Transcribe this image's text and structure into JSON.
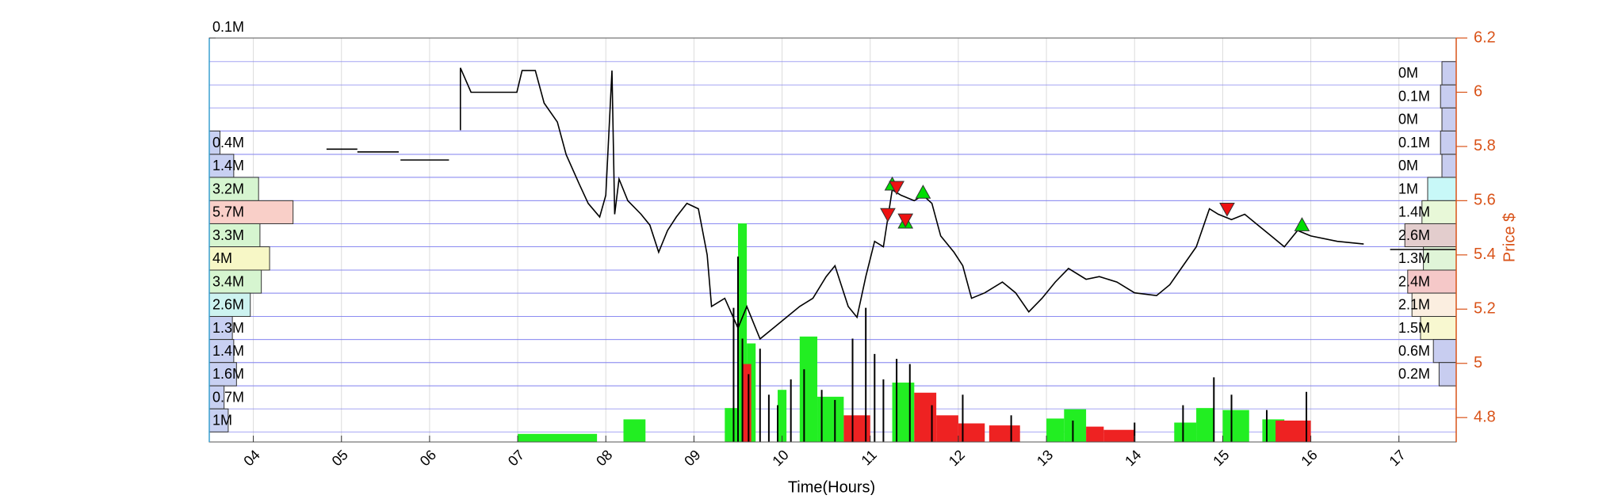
{
  "chart_data": {
    "type": "price-volume",
    "xlabel": "Time(Hours)",
    "ylabel": "Price $",
    "xlim": [
      3.5,
      17.65
    ],
    "xticks": [
      {
        "value": 4,
        "label": "04"
      },
      {
        "value": 5,
        "label": "05"
      },
      {
        "value": 6,
        "label": "06"
      },
      {
        "value": 7,
        "label": "07"
      },
      {
        "value": 8,
        "label": "08"
      },
      {
        "value": 9,
        "label": "09"
      },
      10,
      11,
      12,
      13,
      14,
      15,
      16,
      17
    ],
    "ylim": [
      4.71,
      6.2
    ],
    "yticks": [
      4.8,
      5,
      5.2,
      5.4,
      5.6,
      5.8,
      6,
      6.2
    ],
    "axis_color": "#d95319",
    "volume_lim": [
      0,
      100000
    ],
    "volume_ticks": [
      {
        "value": 100000,
        "label": "0.1M"
      }
    ],
    "price": {
      "color": "#000000",
      "x": [
        4.83,
        5.18,
        null,
        5.18,
        5.65,
        null,
        5.67,
        6.22,
        null,
        6.35,
        6.35,
        6.47,
        6.99,
        7.05,
        7.2,
        7.3,
        7.45,
        7.55,
        7.7,
        7.8,
        7.93,
        8.0,
        8.07,
        8.1,
        8.15,
        8.25,
        8.4,
        8.5,
        8.6,
        8.7,
        8.8,
        8.92,
        9.05,
        9.15,
        9.2,
        9.35,
        9.5,
        9.6,
        9.75,
        9.9,
        10.05,
        10.2,
        10.35,
        10.5,
        10.6,
        10.75,
        10.85,
        10.95,
        11.05,
        11.15,
        11.25,
        11.35,
        11.5,
        11.6,
        11.7,
        11.8,
        11.95,
        12.05,
        12.15,
        12.3,
        12.5,
        12.65,
        12.8,
        12.95,
        13.1,
        13.25,
        13.45,
        13.6,
        13.8,
        14.0,
        14.25,
        14.4,
        14.55,
        14.7,
        14.85,
        14.95,
        15.1,
        15.25,
        15.4,
        15.55,
        15.7,
        15.85,
        16.0,
        16.3,
        16.6,
        null,
        16.9,
        17.3,
        17.65
      ],
      "values": [
        5.79,
        5.79,
        null,
        5.78,
        5.78,
        null,
        5.75,
        5.75,
        null,
        5.86,
        6.09,
        6.0,
        6.0,
        6.08,
        6.08,
        5.96,
        5.89,
        5.77,
        5.66,
        5.59,
        5.54,
        5.62,
        6.08,
        5.55,
        5.68,
        5.6,
        5.55,
        5.51,
        5.41,
        5.49,
        5.54,
        5.59,
        5.57,
        5.4,
        5.21,
        5.24,
        5.13,
        5.21,
        5.09,
        5.13,
        5.17,
        5.21,
        5.24,
        5.32,
        5.36,
        5.21,
        5.17,
        5.32,
        5.45,
        5.43,
        5.64,
        5.62,
        5.6,
        5.62,
        5.59,
        5.47,
        5.41,
        5.36,
        5.24,
        5.26,
        5.3,
        5.26,
        5.19,
        5.24,
        5.3,
        5.35,
        5.31,
        5.32,
        5.3,
        5.26,
        5.25,
        5.29,
        5.36,
        5.43,
        5.57,
        5.55,
        5.53,
        5.55,
        5.51,
        5.47,
        5.43,
        5.49,
        5.47,
        5.45,
        5.44,
        null,
        5.42,
        5.42,
        5.42
      ]
    },
    "buy_signals": {
      "color": "#00dd00",
      "x": [
        11.25,
        11.4,
        11.6,
        15.9
      ],
      "values": [
        5.66,
        5.52,
        5.63,
        5.51
      ]
    },
    "sell_signals": {
      "color": "#ee1111",
      "x": [
        11.2,
        11.3,
        11.4,
        15.05
      ],
      "values": [
        5.55,
        5.65,
        5.53,
        5.57
      ]
    },
    "volume_bars": {
      "x0": [
        7.0,
        8.2,
        9.35,
        9.5,
        9.6,
        9.95,
        10.2,
        10.4,
        11.25,
        13.0,
        13.2,
        14.45,
        14.7,
        15.0,
        15.45,
        9.55,
        10.7,
        11.5,
        11.75,
        12.0,
        12.35,
        13.45,
        13.65,
        15.6
      ],
      "x1": [
        7.9,
        8.45,
        9.5,
        9.6,
        9.7,
        10.05,
        10.4,
        10.7,
        11.5,
        13.2,
        13.45,
        14.7,
        14.9,
        15.3,
        15.7,
        9.65,
        11.0,
        11.75,
        12.0,
        12.3,
        12.7,
        13.65,
        14.0,
        16.0
      ],
      "values": [
        2000,
        5600,
        8400,
        54100,
        24400,
        12900,
        26100,
        11200,
        14700,
        5800,
        8100,
        4800,
        8400,
        7900,
        5600,
        19300,
        6600,
        12200,
        6600,
        4600,
        4100,
        3800,
        3000,
        5300
      ],
      "colors": [
        "#22ee22",
        "#22ee22",
        "#22ee22",
        "#22ee22",
        "#22ee22",
        "#22ee22",
        "#22ee22",
        "#22ee22",
        "#22ee22",
        "#22ee22",
        "#22ee22",
        "#22ee22",
        "#22ee22",
        "#22ee22",
        "#22ee22",
        "#ee2222",
        "#ee2222",
        "#ee2222",
        "#ee2222",
        "#ee2222",
        "#ee2222",
        "#ee2222",
        "#ee2222",
        "#ee2222"
      ]
    },
    "volume_spikes": {
      "color": "#000000",
      "x": [
        9.45,
        9.5,
        9.55,
        9.62,
        9.75,
        9.85,
        9.95,
        10.1,
        10.25,
        10.45,
        10.6,
        10.8,
        10.95,
        11.05,
        11.15,
        11.3,
        11.45,
        11.7,
        12.05,
        12.6,
        13.3,
        14.0,
        14.55,
        14.9,
        15.1,
        15.5,
        15.95
      ],
      "values": [
        33200,
        45900,
        25600,
        16800,
        23100,
        11700,
        9100,
        15500,
        18000,
        12900,
        10400,
        25600,
        33200,
        21800,
        15500,
        20600,
        19300,
        9100,
        11700,
        6600,
        5300,
        4800,
        9100,
        16000,
        11700,
        7900,
        12400
      ]
    },
    "left_profile": {
      "bins": [
        5.857,
        5.771,
        5.686,
        5.6,
        5.515,
        5.43,
        5.344,
        5.259,
        5.173,
        5.088,
        5.003,
        4.917,
        4.832,
        4.747
      ],
      "values": [
        400000,
        1400000,
        3200000,
        5700000,
        3300000,
        4000000,
        3400000,
        2600000,
        1300000,
        1400000,
        1600000,
        700000,
        1000000
      ],
      "value_labels": [
        "0.4M",
        "1.4M",
        "3.2M",
        "5.7M",
        "3.3M",
        "4M",
        "3.4M",
        "2.6M",
        "1.3M",
        "1.4M",
        "1.6M",
        "0.7M",
        "1M"
      ],
      "colors": [
        "#c8d0f2",
        "#c8d0f2",
        "#d6f5d0",
        "#f9cfc8",
        "#d6f5d0",
        "#f7f7c6",
        "#d6f5d0",
        "#cdf3f0",
        "#c8d0f2",
        "#c8d0f2",
        "#c8d0f2",
        "#c8d0f2",
        "#c8d0f2"
      ]
    },
    "right_profile": {
      "bins": [
        6.113,
        6.027,
        5.942,
        5.857,
        5.771,
        5.686,
        5.6,
        5.515,
        5.43,
        5.344,
        5.259,
        5.173,
        5.088,
        5.003,
        4.917
      ],
      "values": [
        0,
        100000,
        0,
        100000,
        0,
        1000000,
        1400000,
        2600000,
        1300000,
        2400000,
        2100000,
        1500000,
        600000,
        200000
      ],
      "value_labels": [
        "0M",
        "0.1M",
        "0M",
        "0.1M",
        "0M",
        "1M",
        "1.4M",
        "2.6M",
        "1.3M",
        "2.4M",
        "2.1M",
        "1.5M",
        "0.6M",
        "0.2M"
      ],
      "colors": [
        "#c8cdf0",
        "#c8cdf0",
        "#c8cdf0",
        "#c8cdf0",
        "#c8cdf0",
        "#c8f8f8",
        "#e8f8d8",
        "#e3cdcd",
        "#e0f5d8",
        "#f5c8c8",
        "#fbeee0",
        "#f8f8d0",
        "#c8cdf0",
        "#c8cdf0"
      ]
    }
  }
}
